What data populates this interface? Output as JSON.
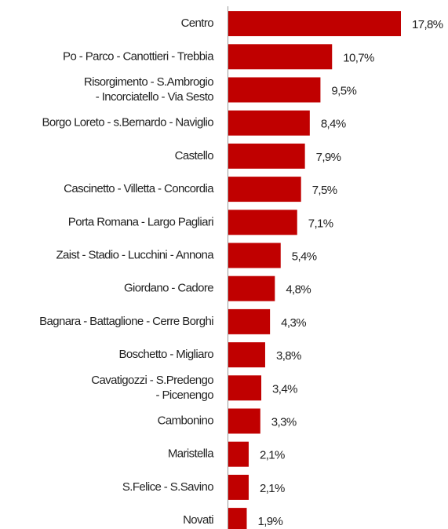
{
  "chart_data": {
    "type": "barh",
    "color": "#c00000",
    "categories": [
      "Centro",
      "Po - Parco - Canottieri - Trebbia",
      "Risorgimento - S.Ambrogio\n- Incorciatello - Via Sesto",
      "Borgo Loreto - s.Bernardo - Naviglio",
      "Castello",
      "Cascinetto - Villetta - Concordia",
      "Porta Romana - Largo Pagliari",
      "Zaist - Stadio - Lucchini - Annona",
      "Giordano - Cadore",
      "Bagnara - Battaglione - Cerre Borghi",
      "Boschetto - Migliaro",
      "Cavatigozzi - S.Predengo\n- Picenengo",
      "Cambonino",
      "Maristella",
      "S.Felice - S.Savino",
      "Novati"
    ],
    "values": [
      17.8,
      10.7,
      9.5,
      8.4,
      7.9,
      7.5,
      7.1,
      5.4,
      4.8,
      4.3,
      3.8,
      3.4,
      3.3,
      2.1,
      2.1,
      1.9
    ],
    "value_labels": [
      "17,8%",
      "10,7%",
      "9,5%",
      "8,4%",
      "7,9%",
      "7,5%",
      "7,1%",
      "5,4%",
      "4,8%",
      "4,3%",
      "3,8%",
      "3,4%",
      "3,3%",
      "2,1%",
      "2,1%",
      "1,9%"
    ]
  }
}
